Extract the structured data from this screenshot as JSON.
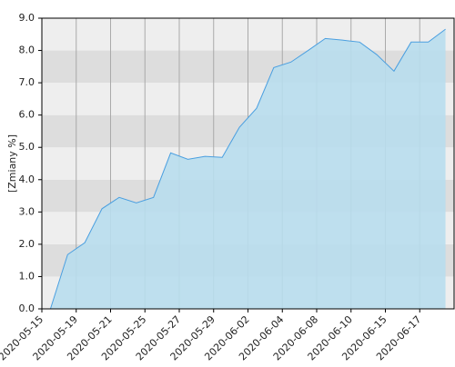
{
  "chart_data": {
    "type": "area",
    "y_label": "[Zmiany %]",
    "categories": [
      "2020-05-15",
      null,
      "2020-05-19",
      null,
      "2020-05-21",
      null,
      "2020-05-25",
      null,
      "2020-05-27",
      null,
      "2020-05-29",
      null,
      "2020-06-02",
      null,
      "2020-06-04",
      null,
      "2020-06-08",
      null,
      "2020-06-10",
      null,
      "2020-06-15",
      null,
      "2020-06-17",
      null
    ],
    "values": [
      0,
      1.68,
      2.05,
      3.1,
      3.45,
      3.28,
      3.45,
      4.83,
      4.63,
      4.72,
      4.69,
      5.62,
      6.21,
      7.47,
      7.64,
      8.0,
      8.37,
      8.32,
      8.26,
      7.87,
      7.36,
      8.26,
      8.26,
      8.66
    ],
    "color": "#4a9fe0",
    "fill": "#b8dded",
    "ylim": [
      0,
      9
    ],
    "yticks": [
      {
        "value": 0,
        "label": "0.0"
      },
      {
        "value": 1,
        "label": "1.0"
      },
      {
        "value": 2,
        "label": "2.0"
      },
      {
        "value": 3,
        "label": "3.0"
      },
      {
        "value": 4,
        "label": "4.0"
      },
      {
        "value": 5,
        "label": "5.0"
      },
      {
        "value": 6,
        "label": "6.0"
      },
      {
        "value": 7,
        "label": "7.0"
      },
      {
        "value": 8,
        "label": "8.0"
      },
      {
        "value": 9,
        "label": "9.0"
      }
    ],
    "band_colors": [
      "#eeeeee",
      "#dddddd"
    ]
  }
}
